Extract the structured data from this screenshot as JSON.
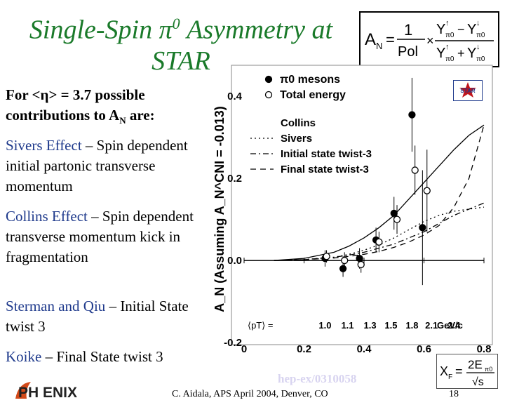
{
  "title": {
    "before": "Single-Spin ",
    "pi": "π",
    "sup": "0",
    "after": " Asymmetry at STAR"
  },
  "formula": {
    "lhs": "A",
    "lhs_sub": "N",
    "eq": "=",
    "one": "1",
    "pol": "Pol",
    "times": "×",
    "num": "Y↑π0 − Y↓π0",
    "den": "Y↑π0 + Y↓π0",
    "Y": "Y",
    "up": "↑",
    "down": "↓",
    "pi0": "π0",
    "minus": "−",
    "plus": "+"
  },
  "bullets": {
    "for_a": "For <",
    "for_eta": "η",
    "for_b": "> = 3.7 possible contributions to A",
    "for_sub": "N",
    "for_c": " are:",
    "sivers_term": "Sivers Effect",
    "sivers_rest": " – Spin dependent initial partonic transverse momentum",
    "collins_term": "Collins Effect",
    "collins_rest": " – Spin dependent transverse momentum kick in fragmentation",
    "sterman_term": "Sterman and Qiu",
    "sterman_rest": " – Initial State twist 3",
    "koike_term": "Koike",
    "koike_rest": " – Final State twist 3"
  },
  "logos": {
    "phenix": "PH ENIX",
    "star": "STAR"
  },
  "arxiv": "hep-ex/0310058",
  "footer": "C. Aidala, APS April 2004, Denver, CO",
  "slide_number": "18",
  "xf": {
    "lhs": "X",
    "lhs_sub": "F",
    "eq": "=",
    "num": "2E",
    "num_sub": "π0",
    "den": "√s"
  },
  "colors": {
    "title": "#1a7a2a",
    "terms": "#1f3a8c",
    "arxiv": "#d8d4f0",
    "star": "#c0141c"
  },
  "chart_data": {
    "type": "scatter",
    "ylabel": "A_N (Assuming A_N^CNI = -0.013)",
    "x_axis": {
      "ticks": [
        "0",
        "0.2",
        "0.4",
        "0.6",
        "0.8"
      ],
      "range": [
        0,
        0.8
      ]
    },
    "y_axis": {
      "ticks": [
        "0.4",
        "0.2",
        "0.0",
        "-0.2"
      ],
      "range": [
        -0.2,
        0.45
      ]
    },
    "pt_label": "⟨pT⟩ =",
    "pt_values": [
      "1.0",
      "1.1",
      "1.3",
      "1.5",
      "1.8",
      "2.1",
      "2.4"
    ],
    "pt_x": [
      0.27,
      0.345,
      0.42,
      0.49,
      0.56,
      0.625,
      0.7
    ],
    "pt_unit": "GeV/c",
    "legend_markers": [
      {
        "label": "π0 mesons",
        "marker": "filled"
      },
      {
        "label": "Total energy",
        "marker": "open"
      }
    ],
    "legend_lines": [
      {
        "label": "Collins",
        "style": "solid"
      },
      {
        "label": "Sivers",
        "style": "dotted"
      },
      {
        "label": "Initial state twist-3",
        "style": "dashdot"
      },
      {
        "label": "Final state twist-3",
        "style": "dashed"
      }
    ],
    "series": [
      {
        "name": "π0 mesons",
        "marker": "filled",
        "x": [
          0.27,
          0.33,
          0.385,
          0.44,
          0.5,
          0.56,
          0.595
        ],
        "y": [
          0.005,
          -0.02,
          0.005,
          0.05,
          0.115,
          0.355,
          0.08
        ],
        "yerr": [
          0.02,
          0.02,
          0.025,
          0.03,
          0.04,
          0.09,
          0.14
        ]
      },
      {
        "name": "Total energy",
        "marker": "open",
        "x": [
          0.275,
          0.335,
          0.39,
          0.45,
          0.51,
          0.57,
          0.61
        ],
        "y": [
          0.01,
          0.0,
          -0.01,
          0.045,
          0.1,
          0.22,
          0.17
        ],
        "yerr": [
          0.015,
          0.02,
          0.02,
          0.025,
          0.035,
          0.06,
          0.1
        ]
      }
    ],
    "curves": [
      {
        "name": "Collins",
        "style": "solid",
        "x": [
          0.1,
          0.2,
          0.3,
          0.35,
          0.4,
          0.45,
          0.5,
          0.55,
          0.6,
          0.65,
          0.7,
          0.75,
          0.8
        ],
        "y": [
          0.0,
          0.005,
          0.02,
          0.035,
          0.055,
          0.08,
          0.11,
          0.15,
          0.19,
          0.23,
          0.27,
          0.305,
          0.33
        ]
      },
      {
        "name": "Sivers",
        "style": "dotted",
        "x": [
          0.1,
          0.2,
          0.3,
          0.35,
          0.4,
          0.45,
          0.5,
          0.55,
          0.6,
          0.65,
          0.7,
          0.75,
          0.8
        ],
        "y": [
          0.0,
          0.002,
          0.008,
          0.015,
          0.025,
          0.038,
          0.055,
          0.075,
          0.095,
          0.11,
          0.12,
          0.125,
          0.13
        ]
      },
      {
        "name": "Initial state twist-3",
        "style": "dashdot",
        "x": [
          0.1,
          0.2,
          0.3,
          0.35,
          0.4,
          0.45,
          0.5,
          0.55,
          0.6,
          0.65,
          0.7,
          0.75,
          0.8
        ],
        "y": [
          0.0,
          0.002,
          0.008,
          0.013,
          0.02,
          0.03,
          0.04,
          0.055,
          0.07,
          0.09,
          0.11,
          0.125,
          0.14
        ]
      },
      {
        "name": "Final state twist-3",
        "style": "dashed",
        "x": [
          0.1,
          0.2,
          0.3,
          0.35,
          0.4,
          0.45,
          0.5,
          0.55,
          0.6,
          0.65,
          0.7,
          0.75,
          0.8
        ],
        "y": [
          0.0,
          0.002,
          0.006,
          0.01,
          0.015,
          0.022,
          0.032,
          0.045,
          0.062,
          0.085,
          0.13,
          0.2,
          0.33
        ]
      }
    ]
  }
}
